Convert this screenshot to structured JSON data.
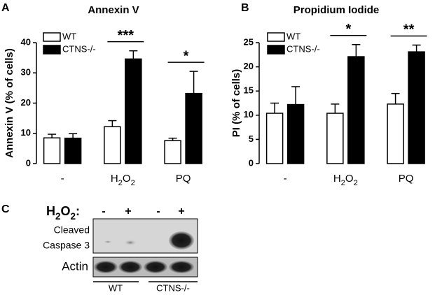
{
  "panel_labels": [
    "A",
    "B",
    "C"
  ],
  "chart_data": [
    {
      "type": "bar",
      "title": "Annexin V",
      "y_label": "Annexin V (% of cells)",
      "categories": [
        "-",
        "H2O2",
        "PQ"
      ],
      "series": [
        {
          "name": "WT",
          "color": "#ffffff",
          "values": [
            8.5,
            12.2,
            7.6
          ],
          "errors": [
            1.2,
            2.0,
            0.8
          ]
        },
        {
          "name": "CTNS-/-",
          "color": "#000000",
          "values": [
            8.4,
            34.6,
            23.2
          ],
          "errors": [
            1.5,
            2.7,
            7.3
          ]
        }
      ],
      "ylim": [
        0,
        40
      ],
      "yticks": [
        0,
        10,
        20,
        30,
        40
      ],
      "annotations": [
        {
          "text": "***",
          "category": "H2O2"
        },
        {
          "text": "*",
          "category": "PQ"
        }
      ]
    },
    {
      "type": "bar",
      "title": "Propidium Iodide",
      "y_label": "PI (% of cells)",
      "categories": [
        "-",
        "H2O2",
        "PQ"
      ],
      "series": [
        {
          "name": "WT",
          "color": "#ffffff",
          "values": [
            10.4,
            10.4,
            12.3
          ],
          "errors": [
            2.1,
            1.9,
            2.2
          ]
        },
        {
          "name": "CTNS-/-",
          "color": "#000000",
          "values": [
            12.2,
            22.1,
            23.1
          ],
          "errors": [
            3.7,
            2.5,
            1.4
          ]
        }
      ],
      "ylim": [
        0,
        25
      ],
      "yticks": [
        0,
        5,
        10,
        15,
        20,
        25
      ],
      "annotations": [
        {
          "text": "*",
          "category": "H2O2"
        },
        {
          "text": "**",
          "category": "PQ"
        }
      ]
    }
  ],
  "blot": {
    "treatment_label": "H2O2:",
    "lane_signs": [
      "-",
      "+",
      "-",
      "+"
    ],
    "row_labels": [
      [
        "Cleaved",
        "Caspase 3"
      ],
      [
        "Actin"
      ]
    ],
    "groups": [
      "WT",
      "CTNS-/-"
    ]
  }
}
